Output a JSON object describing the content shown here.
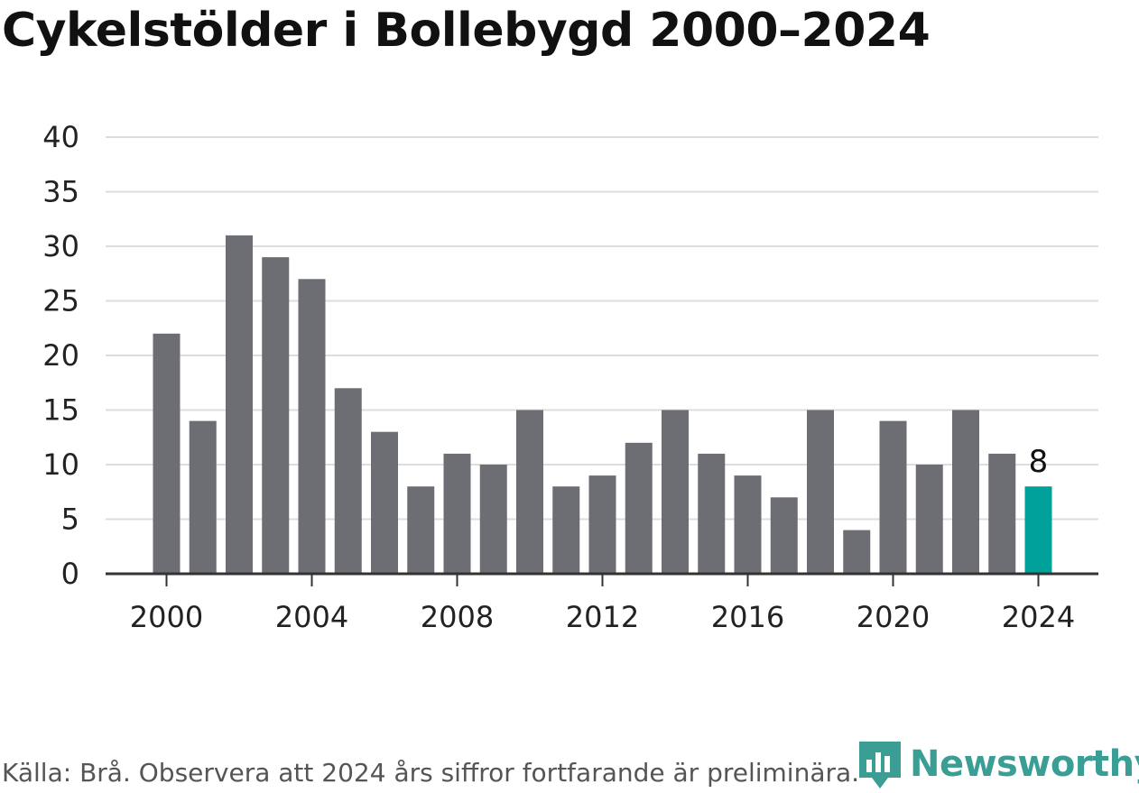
{
  "title": "Cykelstölder i Bollebygd 2000–2024",
  "footer": "Källa: Brå. Observera att 2024 års siffror fortfarande är preliminära.",
  "logo": {
    "name": "Newsworthy",
    "icon": "bar-chart-logo-icon"
  },
  "colors": {
    "bar": "#6d6d74",
    "highlight": "#00a19a",
    "grid": "#dddddd",
    "axis": "#333333",
    "text": "#222222"
  },
  "chart_data": {
    "type": "bar",
    "title": "Cykelstölder i Bollebygd 2000–2024",
    "xlabel": "",
    "ylabel": "",
    "ylim": [
      0,
      40
    ],
    "yticks": [
      0,
      5,
      10,
      15,
      20,
      25,
      30,
      35,
      40
    ],
    "xticks": [
      2000,
      2004,
      2008,
      2012,
      2016,
      2020,
      2024
    ],
    "categories": [
      2000,
      2001,
      2002,
      2003,
      2004,
      2005,
      2006,
      2007,
      2008,
      2009,
      2010,
      2011,
      2012,
      2013,
      2014,
      2015,
      2016,
      2017,
      2018,
      2019,
      2020,
      2021,
      2022,
      2023,
      2024
    ],
    "values": [
      22,
      14,
      31,
      29,
      27,
      17,
      13,
      8,
      11,
      10,
      15,
      8,
      9,
      12,
      15,
      11,
      9,
      7,
      15,
      4,
      14,
      10,
      15,
      11,
      8
    ],
    "highlight": {
      "category": 2024,
      "label": "8"
    },
    "grid": true
  }
}
